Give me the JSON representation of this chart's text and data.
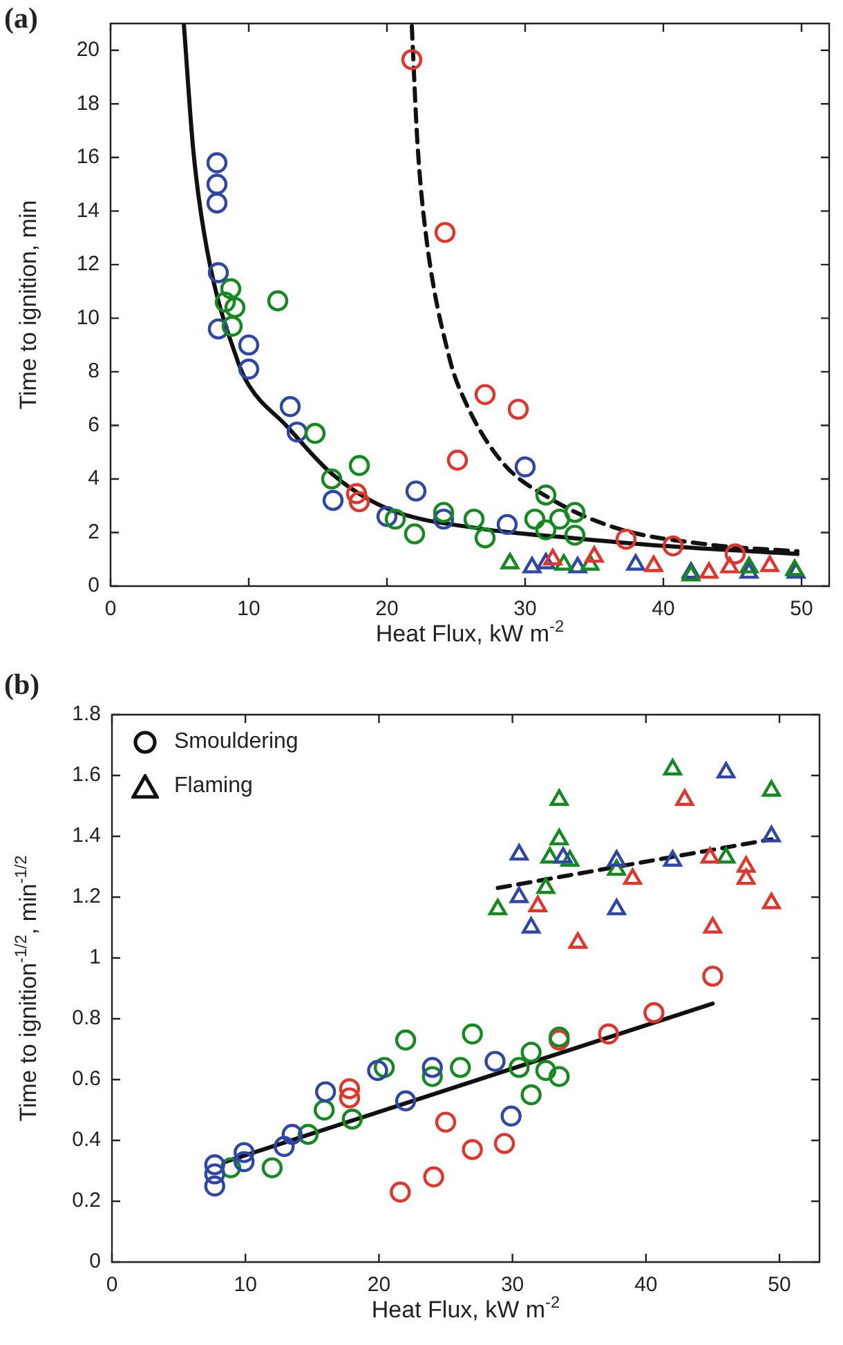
{
  "chart_data": [
    {
      "type": "scatter",
      "title": "(a)",
      "xlabel": "Heat Flux, kW m$^{-2}$",
      "ylabel": "Time to ignition, min",
      "xlim": [
        0,
        52
      ],
      "ylim": [
        0,
        21
      ],
      "xticks": [
        0,
        10,
        20,
        30,
        40,
        50
      ],
      "yticks": [
        0,
        2,
        4,
        6,
        8,
        10,
        12,
        14,
        16,
        18,
        20
      ],
      "grid": false,
      "series": [
        {
          "type": "scatter",
          "marker": "circle",
          "x": [
            7.7,
            7.7,
            7.7,
            7.8,
            7.8,
            10,
            10,
            13,
            13.5,
            16.1,
            22.1,
            20,
            24.1,
            28.7,
            30,
            8.7,
            8.3,
            9,
            12.1,
            8.8,
            14.8,
            16,
            18,
            20.6,
            24.1,
            22,
            26.3,
            27.1,
            30.7,
            31.5,
            31.5,
            32.5,
            33.6,
            33.6,
            21.8,
            24.2,
            27.1,
            29.5,
            25.1,
            17.8,
            18,
            37.3,
            40.7,
            45.2
          ],
          "values": [
            15.8,
            15,
            14.3,
            11.7,
            9.6,
            9,
            8.1,
            6.7,
            5.75,
            3.2,
            3.55,
            2.6,
            2.5,
            2.3,
            4.45,
            11.1,
            10.6,
            10.4,
            10.65,
            9.7,
            5.7,
            4,
            4.5,
            2.5,
            2.75,
            1.95,
            2.5,
            1.8,
            2.5,
            3.4,
            2.1,
            2.5,
            2.75,
            1.9,
            19.65,
            13.2,
            7.15,
            6.6,
            4.7,
            3.45,
            3.15,
            1.75,
            1.5,
            1.2
          ],
          "colors": [
            "#2e47a6",
            "#2e47a6",
            "#2e47a6",
            "#2e47a6",
            "#2e47a6",
            "#2e47a6",
            "#2e47a6",
            "#2e47a6",
            "#2e47a6",
            "#2e47a6",
            "#2e47a6",
            "#2e47a6",
            "#2e47a6",
            "#2e47a6",
            "#2e47a6",
            "#138a1e",
            "#138a1e",
            "#138a1e",
            "#138a1e",
            "#138a1e",
            "#138a1e",
            "#138a1e",
            "#138a1e",
            "#138a1e",
            "#138a1e",
            "#138a1e",
            "#138a1e",
            "#138a1e",
            "#138a1e",
            "#138a1e",
            "#138a1e",
            "#138a1e",
            "#138a1e",
            "#138a1e",
            "#e3342b",
            "#e3342b",
            "#e3342b",
            "#e3342b",
            "#e3342b",
            "#e3342b",
            "#e3342b",
            "#e3342b",
            "#e3342b",
            "#e3342b"
          ]
        },
        {
          "type": "scatter",
          "marker": "triangle",
          "x": [
            30.5,
            31.5,
            33.8,
            38,
            42,
            46.2,
            49.6,
            28.9,
            32.8,
            34.7,
            42,
            46.2,
            49.5,
            32,
            35,
            39.3,
            43.3,
            44.8,
            47.7
          ],
          "values": [
            0.7,
            0.85,
            0.7,
            0.8,
            0.5,
            0.5,
            0.5,
            0.85,
            0.8,
            0.8,
            0.4,
            0.7,
            0.6,
            1,
            1.1,
            0.75,
            0.5,
            0.7,
            0.75
          ],
          "colors": [
            "#2e47a6",
            "#2e47a6",
            "#2e47a6",
            "#2e47a6",
            "#2e47a6",
            "#2e47a6",
            "#2e47a6",
            "#138a1e",
            "#138a1e",
            "#138a1e",
            "#138a1e",
            "#138a1e",
            "#138a1e",
            "#e3342b",
            "#e3342b",
            "#e3342b",
            "#e3342b",
            "#e3342b",
            "#e3342b"
          ]
        },
        {
          "type": "line",
          "color": "#111111",
          "line_style": "solid",
          "x": [
            5.3,
            6,
            7,
            9.2,
            10,
            12.7,
            16,
            20,
            26.7,
            33.3,
            40,
            49.7
          ],
          "values": [
            21,
            16.2,
            12.5,
            8.4,
            7.5,
            6,
            4.2,
            2.9,
            2.15,
            1.8,
            1.5,
            1.2
          ]
        },
        {
          "type": "line",
          "color": "#111111",
          "line_style": "dashed",
          "x": [
            21.8,
            22.2,
            22.8,
            24.5,
            25.7,
            28.3,
            31.7,
            36.7,
            43.3,
            49.7
          ],
          "values": [
            20.9,
            16.6,
            13.2,
            8.55,
            6.85,
            4.65,
            3.3,
            2.15,
            1.55,
            1.3
          ]
        }
      ]
    },
    {
      "type": "scatter",
      "title": "(b)",
      "xlabel": "Heat Flux, kW m$^{-2}$",
      "ylabel": "Time to ignition$^{-1/2}$, min$^{-1/2}$",
      "xlim": [
        0,
        53
      ],
      "ylim": [
        0,
        1.8
      ],
      "xticks": [
        0,
        10,
        20,
        30,
        40,
        50
      ],
      "yticks": [
        0,
        0.2,
        0.4,
        0.6,
        0.8,
        1,
        1.2,
        1.4,
        1.6,
        1.8
      ],
      "grid": false,
      "annotations": [
        "Smouldering",
        "Flaming"
      ],
      "series": [
        {
          "type": "scatter",
          "marker": "circle",
          "x": [
            45,
            40.6,
            37.2,
            33.5,
            17.8,
            17.8,
            25,
            27,
            29.4,
            24.1,
            21.6,
            22,
            27,
            33.5,
            20.4,
            24,
            26.1,
            30.5,
            31.4,
            32.5,
            33.5,
            31.4,
            15.9,
            18,
            14.7,
            12,
            8.9,
            7.7,
            7.7,
            7.7,
            9.9,
            9.9,
            12.9,
            13.5,
            16,
            19.9,
            24,
            22,
            28.7,
            29.9
          ],
          "values": [
            0.94,
            0.82,
            0.75,
            0.73,
            0.57,
            0.54,
            0.46,
            0.37,
            0.39,
            0.28,
            0.23,
            0.73,
            0.75,
            0.74,
            0.64,
            0.61,
            0.64,
            0.64,
            0.69,
            0.63,
            0.61,
            0.55,
            0.5,
            0.47,
            0.42,
            0.31,
            0.31,
            0.32,
            0.29,
            0.25,
            0.36,
            0.33,
            0.38,
            0.42,
            0.56,
            0.63,
            0.64,
            0.53,
            0.66,
            0.48
          ],
          "colors": [
            "#e3342b",
            "#e3342b",
            "#e3342b",
            "#e3342b",
            "#e3342b",
            "#e3342b",
            "#e3342b",
            "#e3342b",
            "#e3342b",
            "#e3342b",
            "#e3342b",
            "#138a1e",
            "#138a1e",
            "#138a1e",
            "#138a1e",
            "#138a1e",
            "#138a1e",
            "#138a1e",
            "#138a1e",
            "#138a1e",
            "#138a1e",
            "#138a1e",
            "#138a1e",
            "#138a1e",
            "#138a1e",
            "#138a1e",
            "#138a1e",
            "#2e47a6",
            "#2e47a6",
            "#2e47a6",
            "#2e47a6",
            "#2e47a6",
            "#2e47a6",
            "#2e47a6",
            "#2e47a6",
            "#2e47a6",
            "#2e47a6",
            "#2e47a6",
            "#2e47a6",
            "#2e47a6"
          ]
        },
        {
          "type": "scatter",
          "marker": "triangle",
          "x": [
            28.9,
            32.5,
            33.5,
            33.5,
            32.8,
            34.3,
            37.8,
            42,
            46,
            49.4,
            30.5,
            30.5,
            31.4,
            33.8,
            37.8,
            37.8,
            42,
            46,
            49.4,
            31.9,
            34.9,
            39,
            42.9,
            44.8,
            45,
            47.5,
            47.5,
            49.4
          ],
          "values": [
            1.16,
            1.23,
            1.52,
            1.39,
            1.33,
            1.32,
            1.29,
            1.62,
            1.33,
            1.55,
            1.34,
            1.2,
            1.1,
            1.33,
            1.32,
            1.16,
            1.32,
            1.61,
            1.4,
            1.17,
            1.05,
            1.26,
            1.52,
            1.33,
            1.1,
            1.3,
            1.26,
            1.18
          ],
          "colors": [
            "#138a1e",
            "#138a1e",
            "#138a1e",
            "#138a1e",
            "#138a1e",
            "#138a1e",
            "#138a1e",
            "#138a1e",
            "#138a1e",
            "#138a1e",
            "#2e47a6",
            "#2e47a6",
            "#2e47a6",
            "#2e47a6",
            "#2e47a6",
            "#2e47a6",
            "#2e47a6",
            "#2e47a6",
            "#2e47a6",
            "#e3342b",
            "#e3342b",
            "#e3342b",
            "#e3342b",
            "#e3342b",
            "#e3342b",
            "#e3342b",
            "#e3342b",
            "#e3342b"
          ]
        },
        {
          "type": "line",
          "color": "#111111",
          "line_style": "solid",
          "x": [
            8.5,
            45
          ],
          "values": [
            0.33,
            0.85
          ]
        },
        {
          "type": "line",
          "color": "#111111",
          "line_style": "dashed",
          "x": [
            28.9,
            49.4
          ],
          "values": [
            1.23,
            1.39
          ]
        }
      ]
    }
  ]
}
